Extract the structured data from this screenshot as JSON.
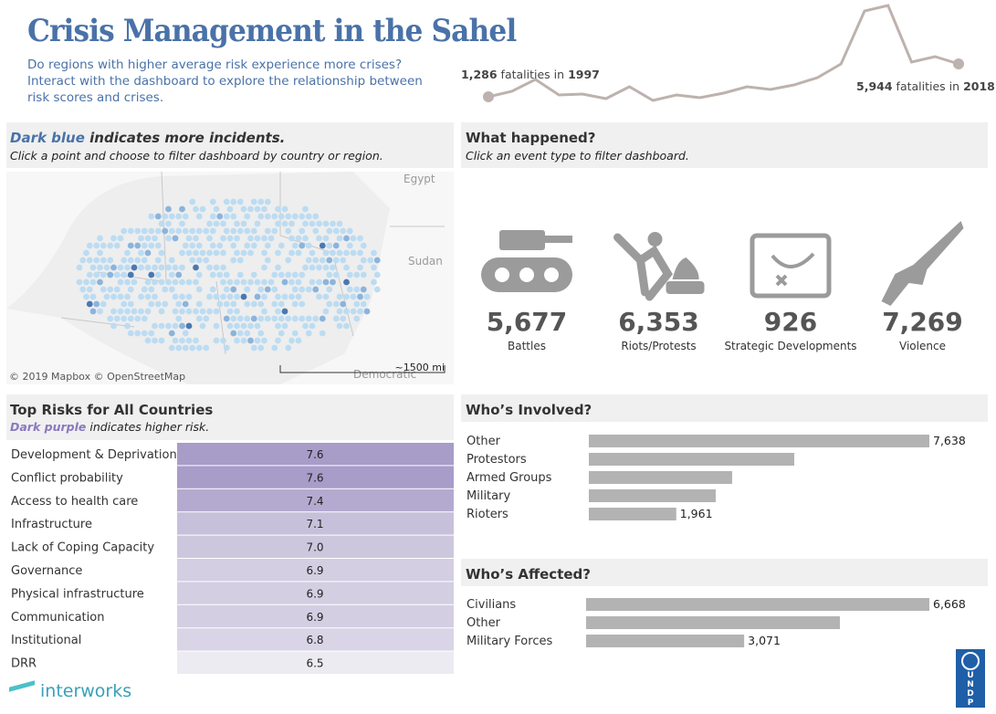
{
  "header": {
    "title": "Crisis Management in the Sahel",
    "subtitle": "Do regions with higher average risk experience more crises? Interact with the dashboard to explore the relationship between risk scores and crises."
  },
  "chart_data": [
    {
      "type": "line",
      "color": "#bdb2ad",
      "values": [
        1286,
        2062,
        3745,
        1545,
        1674,
        1027,
        2709,
        768,
        1545,
        1157,
        1804,
        2709,
        2321,
        2968,
        4003,
        5944,
        13450,
        14226,
        6203,
        6980,
        5944
      ],
      "annotations": [
        {
          "number": "1,286",
          "text": "fatalities in",
          "year": "1997"
        },
        {
          "number": "5,944",
          "text": "fatalities in",
          "year": "2018"
        }
      ]
    },
    {
      "type": "bar",
      "orientation": "horizontal",
      "title": "Who’s Involved?",
      "color": "#b3b3b3",
      "categories": [
        "Other",
        "Protestors",
        "Armed Groups",
        "Military",
        "Rioters"
      ],
      "values": [
        7638,
        4608,
        3215,
        2846,
        1961
      ],
      "value_labels": [
        "7,638",
        null,
        null,
        null,
        "1,961"
      ]
    },
    {
      "type": "bar",
      "orientation": "horizontal",
      "title": "Who’s Affected?",
      "color": "#b3b3b3",
      "categories": [
        "Civilians",
        "Other",
        "Military Forces"
      ],
      "values": [
        6668,
        4930,
        3071
      ],
      "value_labels": [
        "6,668",
        null,
        "3,071"
      ]
    }
  ],
  "map": {
    "title_em": "Dark blue",
    "title": "indicates more incidents.",
    "subtitle": "Click a point and choose to filter dashboard by country or region.",
    "labels": [
      "Egypt",
      "Sudan",
      "Democratic"
    ],
    "credit": "© 2019 Mapbox © OpenStreetMap",
    "scale": "~1500 mi"
  },
  "events": {
    "title": "What happened?",
    "subtitle": "Click an event type to filter dashboard.",
    "items": [
      {
        "count": "5,677",
        "label": "Battles"
      },
      {
        "count": "6,353",
        "label": "Riots/Protests"
      },
      {
        "count": "926",
        "label": "Strategic Developments"
      },
      {
        "count": "7,269",
        "label": "Violence"
      }
    ]
  },
  "risks": {
    "title": "Top Risks for All Countries",
    "subtitle_em": "Dark purple",
    "subtitle": "indicates higher risk.",
    "rows": [
      [
        "Development & Deprivation",
        "7.6"
      ],
      [
        "Conflict probability",
        "7.6"
      ],
      [
        "Access to health care",
        "7.4"
      ],
      [
        "Infrastructure",
        "7.1"
      ],
      [
        "Lack of Coping Capacity",
        "7.0"
      ],
      [
        "Governance",
        "6.9"
      ],
      [
        "Physical infrastructure",
        "6.9"
      ],
      [
        "Communication",
        "6.9"
      ],
      [
        "Institutional",
        "6.8"
      ],
      [
        "DRR",
        "6.5"
      ]
    ]
  },
  "footer": {
    "brand": "interworks",
    "logo": [
      "U",
      "N",
      "D",
      "P"
    ]
  }
}
